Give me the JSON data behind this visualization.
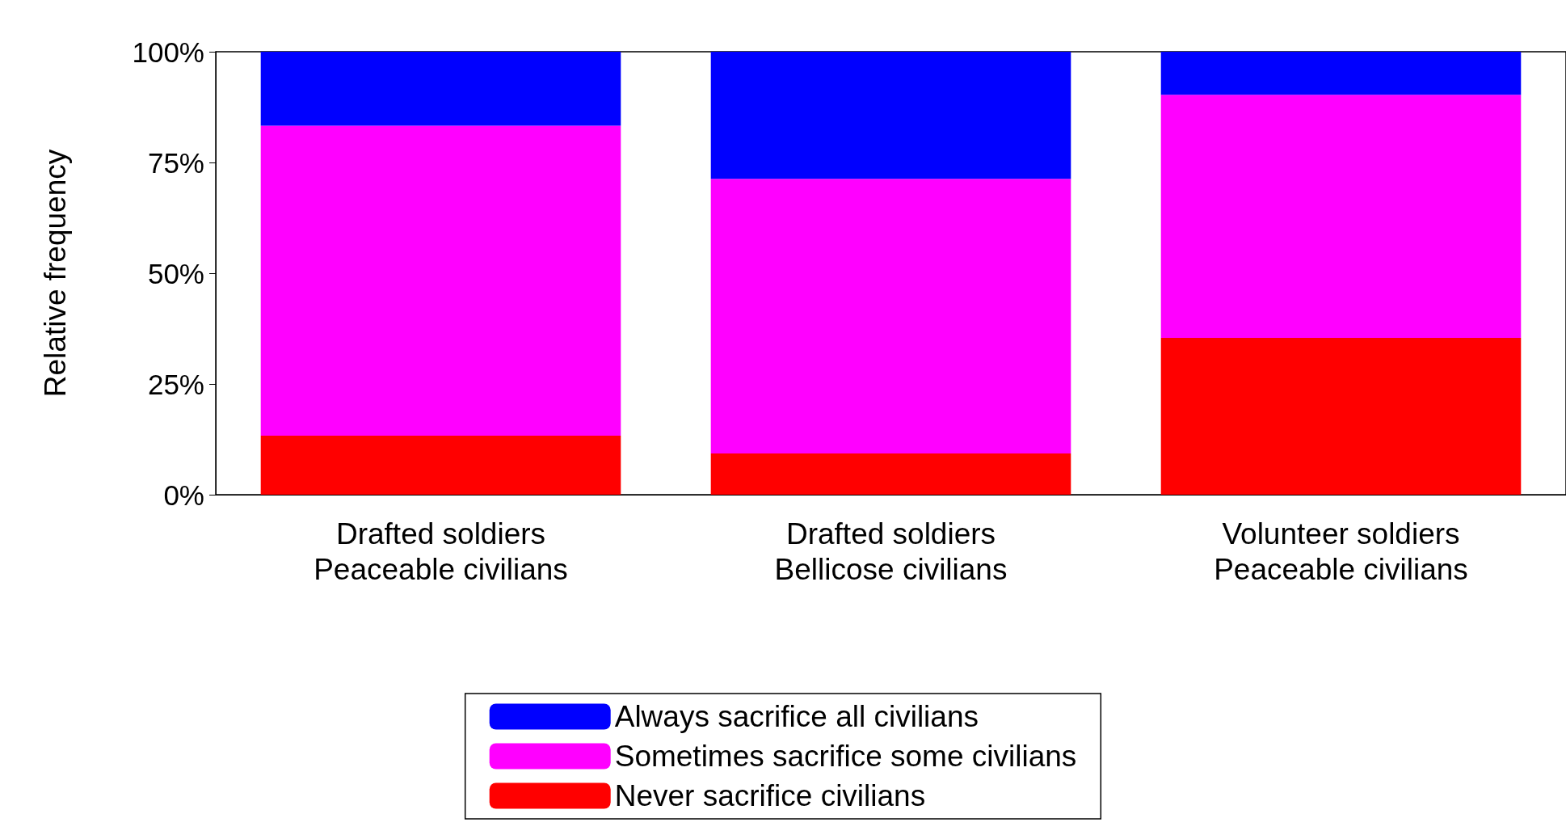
{
  "chart_data": {
    "type": "bar",
    "stacked": true,
    "ylabel": "Relative frequency",
    "categories": [
      "Drafted soldiers\nPeaceable civilians",
      "Drafted soldiers\nBellicose civilians",
      "Volunteer soldiers\nPeaceable civilians"
    ],
    "series": [
      {
        "name": "Never sacrifice civilians",
        "color": "#ff0000",
        "values": [
          13.3,
          9.3,
          35.4
        ]
      },
      {
        "name": "Sometimes sacrifice some civilians",
        "color": "#ff00ff",
        "values": [
          70.0,
          62.0,
          54.9
        ]
      },
      {
        "name": "Always sacrifice all civilians",
        "color": "#0000ff",
        "values": [
          16.7,
          28.7,
          9.7
        ]
      }
    ],
    "ylim": [
      0,
      100
    ],
    "yticks": [
      {
        "value": 0,
        "label": "0%"
      },
      {
        "value": 25,
        "label": "25%"
      },
      {
        "value": 50,
        "label": "50%"
      },
      {
        "value": 75,
        "label": "75%"
      },
      {
        "value": 100,
        "label": "100%"
      }
    ],
    "grid": false,
    "legend": "bottom"
  }
}
